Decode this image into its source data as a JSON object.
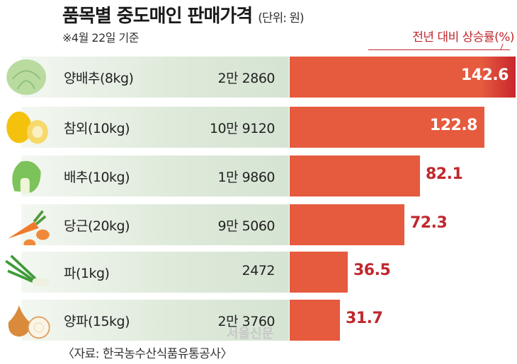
{
  "chart_data": {
    "type": "bar",
    "title": "품목별 중도매인 판매가격",
    "unit": "(단위: 원)",
    "subtitle": "※4월 22일 기준",
    "legend": "전년 대비 상승률(%)",
    "source": "〈자료: 한국농수산식품유통공사〉",
    "watermark": "서울신문",
    "categories": [
      "양배추(8kg)",
      "참외(10kg)",
      "배추(10kg)",
      "당근(20kg)",
      "파(1kg)",
      "양파(15kg)"
    ],
    "prices": [
      "2만 2860",
      "10만 9120",
      "1만 9860",
      "9만 5060",
      "2472",
      "2만 3760"
    ],
    "values": [
      142.6,
      122.8,
      82.1,
      72.3,
      36.5,
      31.7
    ],
    "value_labels": [
      "142.6",
      "122.8",
      "82.1",
      "72.3",
      "36.5",
      "31.7"
    ],
    "icons": [
      "cabbage-icon",
      "korean-melon-icon",
      "napa-cabbage-icon",
      "carrot-icon",
      "green-onion-icon",
      "onion-icon"
    ],
    "xlim": [
      0,
      142.6
    ],
    "colors": {
      "bar": "#e65a3e",
      "label": "#c0272d"
    }
  }
}
